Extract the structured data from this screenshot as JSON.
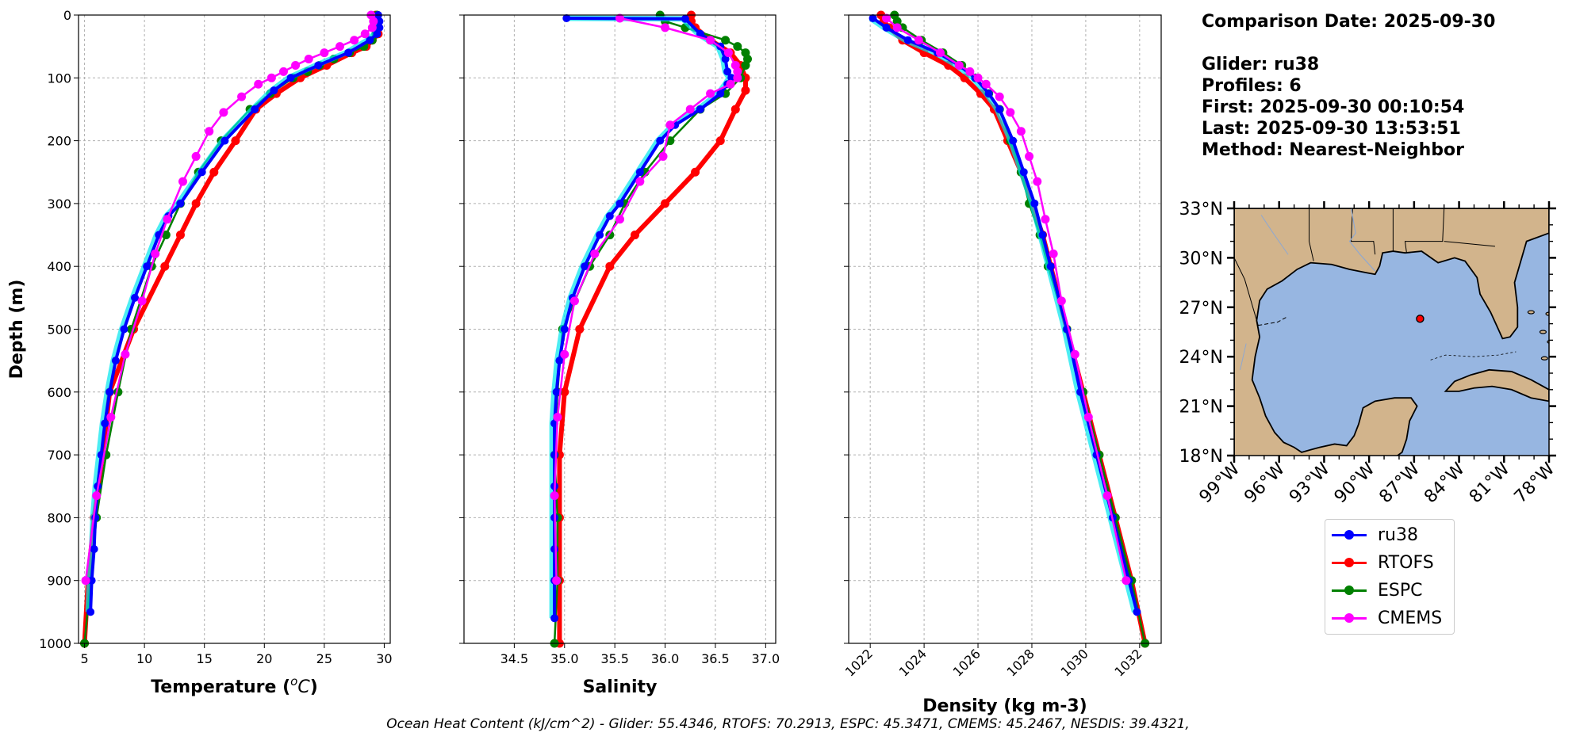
{
  "chart_data": [
    {
      "type": "line",
      "panel": "temperature",
      "xlabel": "Temperature (°C)",
      "ylabel": "Depth (m)",
      "xlim": [
        4.5,
        30.5
      ],
      "ylim": [
        1000,
        0
      ],
      "xticks": [
        "5",
        "10",
        "15",
        "20",
        "25",
        "30"
      ],
      "yticks": [
        "0",
        "100",
        "200",
        "300",
        "400",
        "500",
        "600",
        "700",
        "800",
        "900",
        "1000"
      ],
      "grid": true,
      "series": [
        {
          "name": "ru38",
          "color": "#0000ff",
          "depth": [
            0,
            10,
            20,
            30,
            40,
            60,
            80,
            100,
            120,
            150,
            200,
            250,
            300,
            320,
            350,
            400,
            450,
            500,
            550,
            600,
            650,
            700,
            750,
            800,
            850,
            900,
            950
          ],
          "values": [
            29.5,
            29.6,
            29.6,
            29.4,
            28.8,
            27.0,
            24.5,
            22.2,
            20.8,
            19.2,
            16.7,
            14.8,
            13.0,
            12.0,
            11.2,
            10.2,
            9.2,
            8.3,
            7.6,
            7.1,
            6.7,
            6.4,
            6.1,
            5.9,
            5.8,
            5.6,
            5.5
          ]
        },
        {
          "name": "RTOFS",
          "color": "#ff0000",
          "depth": [
            0,
            10,
            20,
            30,
            40,
            50,
            60,
            80,
            100,
            125,
            150,
            200,
            250,
            300,
            350,
            400,
            500,
            600,
            700,
            800,
            900,
            1000
          ],
          "values": [
            29.3,
            29.4,
            29.5,
            29.5,
            29.0,
            28.5,
            27.3,
            25.2,
            23.0,
            21.0,
            19.3,
            17.6,
            15.8,
            14.3,
            13.0,
            11.7,
            9.1,
            7.1,
            6.5,
            5.8,
            5.3,
            5.0
          ]
        },
        {
          "name": "ESPC",
          "color": "#008000",
          "depth": [
            0,
            10,
            20,
            30,
            40,
            50,
            60,
            70,
            80,
            90,
            100,
            125,
            150,
            200,
            250,
            300,
            350,
            400,
            500,
            600,
            700,
            800,
            900,
            1000
          ],
          "values": [
            29.4,
            29.4,
            29.4,
            29.3,
            29.0,
            28.3,
            27.1,
            25.8,
            24.6,
            23.6,
            22.4,
            20.5,
            18.8,
            16.4,
            14.5,
            13.0,
            11.8,
            10.6,
            8.9,
            7.8,
            6.8,
            6.0,
            5.5,
            5.0
          ]
        },
        {
          "name": "CMEMS",
          "color": "#ff00ff",
          "depth": [
            0,
            10,
            20,
            30,
            40,
            50,
            60,
            70,
            80,
            90,
            100,
            110,
            130,
            155,
            185,
            225,
            265,
            325,
            380,
            455,
            540,
            640,
            765,
            900
          ],
          "values": [
            28.9,
            29.1,
            29.0,
            28.4,
            27.5,
            26.3,
            25.0,
            23.7,
            22.6,
            21.6,
            20.6,
            19.5,
            18.1,
            16.6,
            15.4,
            14.3,
            13.2,
            11.9,
            10.9,
            9.8,
            8.4,
            7.2,
            6.0,
            5.1
          ]
        }
      ]
    },
    {
      "type": "line",
      "panel": "salinity",
      "xlabel": "Salinity",
      "xlim": [
        34.0,
        37.1
      ],
      "ylim": [
        1000,
        0
      ],
      "xticks": [
        "34.5",
        "35.0",
        "35.5",
        "36.0",
        "36.5",
        "37.0"
      ],
      "grid": true,
      "series": [
        {
          "name": "ru38",
          "color": "#0000ff",
          "depth": [
            5,
            6,
            30,
            50,
            70,
            90,
            100,
            110,
            125,
            150,
            175,
            200,
            250,
            300,
            320,
            350,
            400,
            450,
            500,
            550,
            600,
            650,
            700,
            750,
            800,
            850,
            900,
            960
          ],
          "values": [
            35.02,
            36.2,
            36.35,
            36.55,
            36.6,
            36.62,
            36.66,
            36.62,
            36.55,
            36.35,
            36.1,
            35.95,
            35.75,
            35.55,
            35.45,
            35.35,
            35.2,
            35.08,
            35.0,
            34.95,
            34.92,
            34.9,
            34.9,
            34.9,
            34.9,
            34.9,
            34.9,
            34.9
          ]
        },
        {
          "name": "RTOFS",
          "color": "#ff0000",
          "depth": [
            0,
            10,
            20,
            40,
            60,
            80,
            100,
            120,
            150,
            200,
            250,
            300,
            350,
            400,
            500,
            600,
            700,
            800,
            900,
            1000
          ],
          "values": [
            36.26,
            36.26,
            36.3,
            36.45,
            36.65,
            36.75,
            36.8,
            36.8,
            36.7,
            36.55,
            36.3,
            36.0,
            35.7,
            35.45,
            35.15,
            35.0,
            34.95,
            34.95,
            34.95,
            34.95
          ]
        },
        {
          "name": "ESPC",
          "color": "#008000",
          "depth": [
            0,
            10,
            20,
            40,
            50,
            60,
            70,
            80,
            100,
            125,
            150,
            200,
            250,
            300,
            350,
            400,
            500,
            600,
            700,
            800,
            900,
            1000
          ],
          "values": [
            35.95,
            36.0,
            36.2,
            36.6,
            36.72,
            36.8,
            36.82,
            36.8,
            36.75,
            36.6,
            36.35,
            36.05,
            35.8,
            35.6,
            35.45,
            35.25,
            34.98,
            34.93,
            34.9,
            34.93,
            34.93,
            34.9
          ]
        },
        {
          "name": "CMEMS",
          "color": "#ff00ff",
          "depth": [
            5,
            20,
            40,
            60,
            80,
            90,
            100,
            110,
            125,
            150,
            175,
            225,
            265,
            325,
            380,
            455,
            540,
            640,
            765,
            900
          ],
          "values": [
            35.55,
            36.0,
            36.45,
            36.63,
            36.7,
            36.72,
            36.72,
            36.65,
            36.45,
            36.25,
            36.05,
            35.98,
            35.75,
            35.55,
            35.3,
            35.1,
            35.0,
            34.93,
            34.9,
            34.92
          ]
        }
      ]
    },
    {
      "type": "line",
      "panel": "density",
      "xlabel": "Density (kg m-3)",
      "xlim": [
        1021.2,
        1032.8
      ],
      "ylim": [
        1000,
        0
      ],
      "xticks": [
        "1022",
        "1024",
        "1026",
        "1028",
        "1030",
        "1032"
      ],
      "grid": true,
      "series": [
        {
          "name": "ru38",
          "color": "#0000ff",
          "depth": [
            5,
            20,
            40,
            60,
            80,
            100,
            125,
            150,
            200,
            250,
            300,
            350,
            400,
            500,
            600,
            700,
            800,
            900,
            950
          ],
          "values": [
            1022.1,
            1022.6,
            1023.4,
            1024.5,
            1025.3,
            1025.9,
            1026.4,
            1026.8,
            1027.3,
            1027.7,
            1028.1,
            1028.4,
            1028.7,
            1029.3,
            1029.8,
            1030.4,
            1031.0,
            1031.6,
            1031.9
          ]
        },
        {
          "name": "RTOFS",
          "color": "#ff0000",
          "depth": [
            0,
            10,
            20,
            40,
            60,
            80,
            100,
            125,
            150,
            200,
            250,
            300,
            350,
            400,
            500,
            600,
            700,
            800,
            900,
            1000
          ],
          "values": [
            1022.4,
            1022.5,
            1022.7,
            1023.2,
            1024.0,
            1024.9,
            1025.5,
            1026.1,
            1026.6,
            1027.1,
            1027.6,
            1028.0,
            1028.4,
            1028.7,
            1029.3,
            1029.9,
            1030.5,
            1031.1,
            1031.7,
            1032.2
          ]
        },
        {
          "name": "ESPC",
          "color": "#008000",
          "depth": [
            0,
            10,
            20,
            40,
            60,
            80,
            100,
            125,
            150,
            200,
            250,
            300,
            350,
            400,
            500,
            600,
            700,
            800,
            900,
            1000
          ],
          "values": [
            1022.9,
            1023.0,
            1023.2,
            1023.9,
            1024.7,
            1025.4,
            1025.9,
            1026.4,
            1026.8,
            1027.2,
            1027.6,
            1027.9,
            1028.3,
            1028.6,
            1029.3,
            1029.9,
            1030.5,
            1031.1,
            1031.7,
            1032.2
          ]
        },
        {
          "name": "CMEMS",
          "color": "#ff00ff",
          "depth": [
            5,
            20,
            40,
            60,
            80,
            90,
            100,
            110,
            130,
            155,
            185,
            225,
            265,
            325,
            380,
            455,
            540,
            640,
            765,
            900
          ],
          "values": [
            1022.6,
            1023.0,
            1023.8,
            1024.6,
            1025.3,
            1025.7,
            1026.0,
            1026.3,
            1026.8,
            1027.2,
            1027.6,
            1027.9,
            1028.2,
            1028.5,
            1028.8,
            1029.1,
            1029.6,
            1030.1,
            1030.8,
            1031.5
          ]
        }
      ]
    },
    {
      "type": "map",
      "panel": "location",
      "lat_ticks": [
        "33°N",
        "30°N",
        "27°N",
        "24°N",
        "21°N",
        "18°N"
      ],
      "lon_ticks": [
        "99°W",
        "96°W",
        "93°W",
        "90°W",
        "87°W",
        "84°W",
        "81°W",
        "78°W"
      ],
      "lat_range": [
        18,
        33
      ],
      "lon_range": [
        -99,
        -78
      ],
      "glider_position": {
        "lat": 26.3,
        "lon": -86.6
      },
      "colors": {
        "land": "#d2b48c",
        "ocean": "#97b6e1",
        "marker": "#ff0000"
      }
    }
  ],
  "info": {
    "comparison_date": "Comparison Date: 2025-09-30",
    "glider": "Glider: ru38",
    "profiles": "Profiles: 6",
    "first": "First: 2025-09-30 00:10:54",
    "last": "Last: 2025-09-30 13:53:51",
    "method": "Method: Nearest-Neighbor"
  },
  "legend": [
    {
      "label": "ru38",
      "color": "#0000ff"
    },
    {
      "label": "RTOFS",
      "color": "#ff0000"
    },
    {
      "label": "ESPC",
      "color": "#008000"
    },
    {
      "label": "CMEMS",
      "color": "#ff00ff"
    }
  ],
  "ohc_text": "Ocean Heat Content (kJ/cm^2) - Glider: 55.4346,  RTOFS: 70.2913,  ESPC: 45.3471,  CMEMS: 45.2467,  NESDIS: 39.4321,"
}
